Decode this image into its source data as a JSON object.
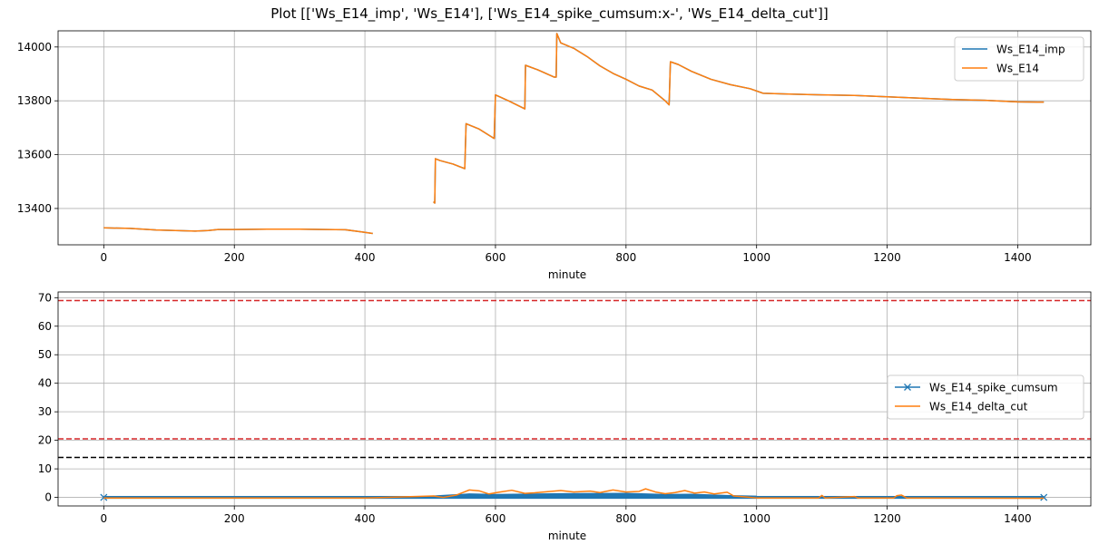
{
  "figure": {
    "title": "Plot [['Ws_E14_imp', 'Ws_E14'], ['Ws_E14_spike_cumsum:x-', 'Ws_E14_delta_cut']]"
  },
  "colors": {
    "blue": "#1f77b4",
    "orange": "#ff7f0e",
    "red": "#d62728",
    "black": "#000000",
    "grid": "#b0b0b0"
  },
  "chart_data": [
    {
      "type": "line",
      "xlabel": "minute",
      "ylabel": "",
      "xlim": [
        -70,
        1512
      ],
      "ylim": [
        13265,
        14060
      ],
      "xticks": [
        0,
        200,
        400,
        600,
        800,
        1000,
        1200,
        1400
      ],
      "yticks": [
        13400,
        13600,
        13800,
        14000
      ],
      "grid": true,
      "legend": "top-right",
      "series": [
        {
          "name": "Ws_E14_imp",
          "color": "#1f77b4",
          "segments": [
            [
              [
                0,
                13328
              ],
              [
                40,
                13326
              ],
              [
                80,
                13320
              ],
              [
                110,
                13318
              ],
              [
                140,
                13316
              ],
              [
                160,
                13318
              ],
              [
                175,
                13322
              ],
              [
                200,
                13322
              ],
              [
                250,
                13323
              ],
              [
                300,
                13323
              ],
              [
                340,
                13322
              ],
              [
                370,
                13321
              ],
              [
                395,
                13313
              ],
              [
                412,
                13307
              ]
            ],
            [
              [
                505,
                13425
              ],
              [
                507,
                13420
              ],
              [
                508,
                13585
              ],
              [
                515,
                13578
              ],
              [
                535,
                13565
              ],
              [
                553,
                13548
              ],
              [
                555,
                13715
              ],
              [
                575,
                13695
              ],
              [
                598,
                13660
              ],
              [
                600,
                13822
              ],
              [
                620,
                13800
              ],
              [
                645,
                13770
              ],
              [
                646,
                13932
              ],
              [
                665,
                13915
              ],
              [
                690,
                13888
              ],
              [
                693,
                13888
              ],
              [
                694,
                14050
              ],
              [
                700,
                14015
              ],
              [
                720,
                13995
              ],
              [
                740,
                13965
              ],
              [
                760,
                13930
              ],
              [
                780,
                13902
              ],
              [
                800,
                13880
              ],
              [
                820,
                13855
              ],
              [
                840,
                13840
              ],
              [
                860,
                13800
              ],
              [
                866,
                13785
              ],
              [
                868,
                13945
              ],
              [
                880,
                13935
              ],
              [
                900,
                13910
              ],
              [
                930,
                13880
              ],
              [
                960,
                13860
              ],
              [
                990,
                13845
              ],
              [
                1010,
                13828
              ],
              [
                1050,
                13825
              ],
              [
                1100,
                13822
              ],
              [
                1150,
                13820
              ],
              [
                1200,
                13815
              ],
              [
                1250,
                13810
              ],
              [
                1300,
                13805
              ],
              [
                1350,
                13802
              ],
              [
                1400,
                13796
              ],
              [
                1440,
                13795
              ]
            ]
          ]
        },
        {
          "name": "Ws_E14",
          "color": "#ff7f0e",
          "segments": [
            [
              [
                0,
                13328
              ],
              [
                40,
                13326
              ],
              [
                80,
                13320
              ],
              [
                110,
                13318
              ],
              [
                140,
                13316
              ],
              [
                160,
                13318
              ],
              [
                175,
                13322
              ],
              [
                200,
                13322
              ],
              [
                250,
                13323
              ],
              [
                300,
                13323
              ],
              [
                340,
                13322
              ],
              [
                370,
                13321
              ],
              [
                395,
                13313
              ],
              [
                412,
                13307
              ]
            ],
            [
              [
                505,
                13425
              ],
              [
                507,
                13420
              ],
              [
                508,
                13585
              ],
              [
                515,
                13578
              ],
              [
                535,
                13565
              ],
              [
                553,
                13548
              ],
              [
                555,
                13715
              ],
              [
                575,
                13695
              ],
              [
                598,
                13660
              ],
              [
                600,
                13822
              ],
              [
                620,
                13800
              ],
              [
                645,
                13770
              ],
              [
                646,
                13932
              ],
              [
                665,
                13915
              ],
              [
                690,
                13888
              ],
              [
                693,
                13888
              ],
              [
                694,
                14050
              ],
              [
                700,
                14015
              ],
              [
                720,
                13995
              ],
              [
                740,
                13965
              ],
              [
                760,
                13930
              ],
              [
                780,
                13902
              ],
              [
                800,
                13880
              ],
              [
                820,
                13855
              ],
              [
                840,
                13840
              ],
              [
                860,
                13800
              ],
              [
                866,
                13785
              ],
              [
                868,
                13945
              ],
              [
                880,
                13935
              ],
              [
                900,
                13910
              ],
              [
                930,
                13880
              ],
              [
                960,
                13860
              ],
              [
                990,
                13845
              ],
              [
                1010,
                13828
              ],
              [
                1050,
                13825
              ],
              [
                1100,
                13822
              ],
              [
                1150,
                13820
              ],
              [
                1200,
                13815
              ],
              [
                1250,
                13810
              ],
              [
                1300,
                13805
              ],
              [
                1350,
                13802
              ],
              [
                1400,
                13796
              ],
              [
                1440,
                13795
              ]
            ]
          ]
        }
      ]
    },
    {
      "type": "line",
      "xlabel": "minute",
      "ylabel": "",
      "xlim": [
        -70,
        1512
      ],
      "ylim": [
        -3,
        72
      ],
      "xticks": [
        0,
        200,
        400,
        600,
        800,
        1000,
        1200,
        1400
      ],
      "yticks": [
        0,
        10,
        20,
        30,
        40,
        50,
        60,
        70
      ],
      "grid": true,
      "legend": "center-right",
      "hlines": [
        {
          "y": 69,
          "color": "#d62728",
          "style": "dashed"
        },
        {
          "y": 20.5,
          "color": "#d62728",
          "style": "dashed"
        },
        {
          "y": 14,
          "color": "#000000",
          "style": "dashed"
        }
      ],
      "series": [
        {
          "name": "Ws_E14_spike_cumsum",
          "color": "#1f77b4",
          "marker": "x",
          "band": {
            "x": [
              0,
              1440
            ],
            "low": -0.5,
            "high": 0.5
          },
          "bulge": [
            [
              500,
              0.6
            ],
            [
              560,
              1.4
            ],
            [
              600,
              1.2
            ],
            [
              700,
              1.5
            ],
            [
              800,
              1.6
            ],
            [
              860,
              1.2
            ],
            [
              900,
              1.3
            ],
            [
              960,
              0.8
            ],
            [
              1000,
              0.6
            ]
          ]
        },
        {
          "name": "Ws_E14_delta_cut",
          "color": "#ff7f0e",
          "points": [
            [
              0,
              -0.2
            ],
            [
              200,
              -0.2
            ],
            [
              400,
              -0.2
            ],
            [
              505,
              0.5
            ],
            [
              520,
              0
            ],
            [
              540,
              0.8
            ],
            [
              560,
              2.6
            ],
            [
              575,
              2.3
            ],
            [
              590,
              1.2
            ],
            [
              605,
              1.8
            ],
            [
              625,
              2.5
            ],
            [
              645,
              1.4
            ],
            [
              660,
              1.6
            ],
            [
              680,
              2.0
            ],
            [
              700,
              2.4
            ],
            [
              720,
              1.9
            ],
            [
              745,
              2.2
            ],
            [
              760,
              1.7
            ],
            [
              780,
              2.6
            ],
            [
              800,
              1.9
            ],
            [
              820,
              2.1
            ],
            [
              830,
              3.0
            ],
            [
              845,
              1.9
            ],
            [
              860,
              1.3
            ],
            [
              875,
              1.7
            ],
            [
              890,
              2.4
            ],
            [
              905,
              1.5
            ],
            [
              920,
              1.9
            ],
            [
              935,
              1.2
            ],
            [
              955,
              1.8
            ],
            [
              965,
              0.5
            ],
            [
              980,
              0.2
            ],
            [
              1000,
              -0.2
            ],
            [
              1095,
              -0.2
            ],
            [
              1100,
              0.7
            ],
            [
              1105,
              -0.2
            ],
            [
              1150,
              0.3
            ],
            [
              1155,
              -0.2
            ],
            [
              1210,
              -0.2
            ],
            [
              1215,
              0.6
            ],
            [
              1222,
              0.8
            ],
            [
              1230,
              -0.2
            ],
            [
              1440,
              -0.3
            ]
          ]
        }
      ]
    }
  ]
}
